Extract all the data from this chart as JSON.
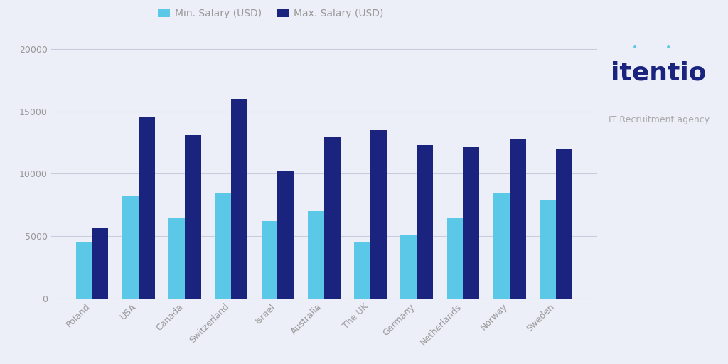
{
  "categories": [
    "Poland",
    "USA",
    "Canada",
    "Switzerland",
    "Israel",
    "Australia",
    "The UK",
    "Germany",
    "Netherlands",
    "Norway",
    "Sweden"
  ],
  "min_salary": [
    4500,
    8200,
    6400,
    8400,
    6200,
    7000,
    4500,
    5100,
    6400,
    8500,
    7900
  ],
  "max_salary": [
    5700,
    14600,
    13100,
    16000,
    10200,
    13000,
    13500,
    12300,
    12100,
    12800,
    12000
  ],
  "min_color": "#5BC8E8",
  "max_color": "#1A237E",
  "background_color": "#ECEEF8",
  "legend_min": "Min. Salary (USD)",
  "legend_max": "Max. Salary (USD)",
  "ylim": [
    0,
    21000
  ],
  "yticks": [
    0,
    5000,
    10000,
    15000,
    20000
  ],
  "bar_width": 0.35,
  "grid_color": "#C8CCDC",
  "tick_color": "#999999",
  "logo_text_main": "itentio",
  "logo_text_sub": "IT Recruitment agency",
  "logo_color": "#1A237E",
  "logo_sub_color": "#AAAAAA",
  "logo_dot_color": "#5BC8E8"
}
